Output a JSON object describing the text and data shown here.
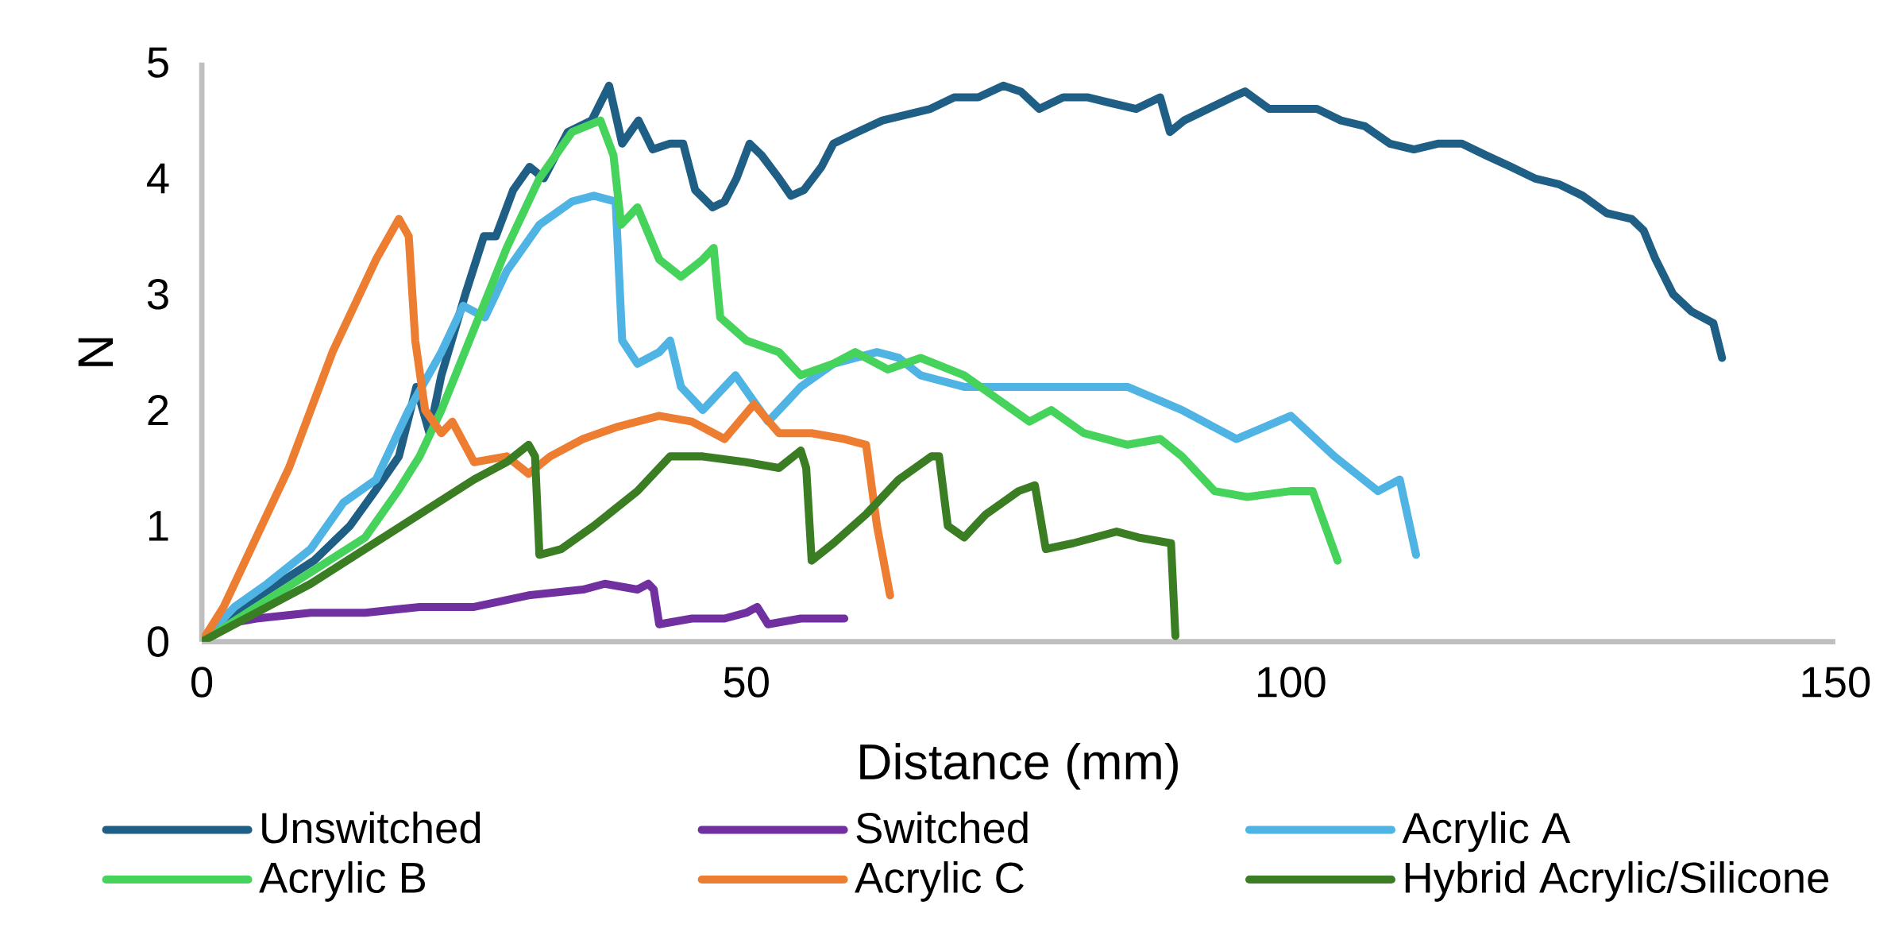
{
  "chart_data": {
    "type": "line",
    "xlabel": "Distance (mm)",
    "ylabel": "N",
    "xlim": [
      0,
      150
    ],
    "xticks": [
      0,
      50,
      100,
      150
    ],
    "ylim": [
      0,
      5
    ],
    "yticks": [
      0,
      1,
      2,
      3,
      4,
      5
    ],
    "grid": false,
    "legend": "bottom",
    "line_style": "solid",
    "marker": "none",
    "series": [
      {
        "name": "Unswitched",
        "color": "#1f5f86",
        "x": [
          0,
          3.7,
          7.0,
          10.3,
          13.6,
          15.9,
          18.1,
          19.7,
          20.9,
          22.0,
          24.2,
          25.9,
          27.0,
          28.6,
          30.1,
          31.4,
          33.6,
          35.8,
          37.4,
          38.6,
          40.1,
          41.4,
          43.0,
          44.2,
          45.3,
          46.9,
          48.0,
          49.1,
          50.3,
          51.4,
          53.0,
          54.1,
          55.3,
          56.9,
          58.0,
          60.2,
          62.5,
          64.7,
          66.9,
          69.1,
          71.3,
          73.6,
          75.2,
          76.9,
          79.1,
          81.3,
          83.5,
          85.8,
          88.0,
          88.9,
          90.2,
          92.4,
          94.6,
          95.8,
          98.0,
          100.2,
          102.4,
          104.6,
          106.8,
          109.1,
          111.3,
          113.5,
          115.7,
          117.9,
          120.2,
          122.4,
          124.6,
          126.8,
          129.0,
          131.3,
          132.4,
          133.5,
          135.1,
          136.8,
          138.8,
          139.6
        ],
        "values": [
          0,
          0.3,
          0.5,
          0.7,
          1.0,
          1.3,
          1.6,
          2.2,
          1.8,
          2.3,
          3.0,
          3.5,
          3.5,
          3.9,
          4.1,
          4.0,
          4.4,
          4.5,
          4.8,
          4.3,
          4.5,
          4.25,
          4.3,
          4.3,
          3.9,
          3.75,
          3.8,
          4.0,
          4.3,
          4.2,
          4.0,
          3.85,
          3.9,
          4.1,
          4.3,
          4.4,
          4.5,
          4.55,
          4.6,
          4.7,
          4.7,
          4.8,
          4.75,
          4.6,
          4.7,
          4.7,
          4.65,
          4.6,
          4.7,
          4.4,
          4.5,
          4.6,
          4.7,
          4.75,
          4.6,
          4.6,
          4.6,
          4.5,
          4.45,
          4.3,
          4.25,
          4.3,
          4.3,
          4.2,
          4.1,
          4.0,
          3.95,
          3.85,
          3.7,
          3.65,
          3.55,
          3.3,
          3.0,
          2.85,
          2.75,
          2.45
        ]
      },
      {
        "name": "Switched",
        "color": "#7030a0",
        "x": [
          0,
          2,
          5,
          10,
          15,
          20,
          25,
          30,
          35,
          37,
          40,
          41,
          41.5,
          42,
          45,
          48,
          50,
          51,
          52,
          55,
          59
        ],
        "values": [
          0,
          0.15,
          0.2,
          0.25,
          0.25,
          0.3,
          0.3,
          0.4,
          0.45,
          0.5,
          0.45,
          0.5,
          0.45,
          0.15,
          0.2,
          0.2,
          0.25,
          0.3,
          0.15,
          0.2,
          0.2
        ]
      },
      {
        "name": "Acrylic A",
        "color": "#4fb3e3",
        "x": [
          0,
          3,
          6,
          10,
          13,
          16,
          19,
          22,
          24,
          26,
          28,
          31,
          34,
          36,
          38,
          38.6,
          40,
          42,
          43,
          44,
          46,
          49,
          52,
          55,
          58,
          62,
          64,
          66,
          70,
          75,
          80,
          85,
          90,
          95,
          100,
          104,
          108,
          110,
          111.5
        ],
        "values": [
          0,
          0.3,
          0.5,
          0.8,
          1.2,
          1.4,
          2.0,
          2.5,
          2.9,
          2.8,
          3.2,
          3.6,
          3.8,
          3.85,
          3.8,
          2.6,
          2.4,
          2.5,
          2.6,
          2.2,
          2.0,
          2.3,
          1.9,
          2.2,
          2.4,
          2.5,
          2.45,
          2.3,
          2.2,
          2.2,
          2.2,
          2.2,
          2.0,
          1.75,
          1.95,
          1.6,
          1.3,
          1.4,
          0.75
        ]
      },
      {
        "name": "Acrylic B",
        "color": "#46d35b",
        "x": [
          0,
          5,
          10,
          15,
          18,
          20,
          22,
          25,
          28,
          31,
          34,
          36.6,
          37.8,
          38.5,
          40,
          42,
          44,
          46,
          47,
          47.6,
          50,
          53,
          55,
          58,
          60,
          63,
          66,
          70,
          73,
          76,
          78,
          81,
          85,
          88,
          90,
          93,
          96,
          100,
          102,
          104.3
        ],
        "values": [
          0,
          0.3,
          0.6,
          0.9,
          1.3,
          1.6,
          2.0,
          2.7,
          3.4,
          4.0,
          4.4,
          4.5,
          4.2,
          3.6,
          3.75,
          3.3,
          3.15,
          3.3,
          3.4,
          2.8,
          2.6,
          2.5,
          2.3,
          2.4,
          2.5,
          2.35,
          2.45,
          2.3,
          2.1,
          1.9,
          2.0,
          1.8,
          1.7,
          1.75,
          1.6,
          1.3,
          1.25,
          1.3,
          1.3,
          0.7
        ]
      },
      {
        "name": "Acrylic C",
        "color": "#ed7d31",
        "x": [
          0,
          2,
          4,
          6,
          8,
          10,
          12,
          14,
          16,
          18.1,
          19,
          19.6,
          20.5,
          22,
          23,
          25,
          28,
          30,
          32,
          35,
          38,
          42,
          45,
          48,
          50.7,
          53,
          56,
          59,
          61,
          62,
          63.2
        ],
        "values": [
          0,
          0.3,
          0.7,
          1.1,
          1.5,
          2.0,
          2.5,
          2.9,
          3.3,
          3.65,
          3.5,
          2.6,
          2.0,
          1.8,
          1.9,
          1.55,
          1.6,
          1.45,
          1.6,
          1.75,
          1.85,
          1.95,
          1.9,
          1.75,
          2.05,
          1.8,
          1.8,
          1.75,
          1.7,
          1.0,
          0.4
        ]
      },
      {
        "name": "Hybrid Acrylic/Silicone",
        "color": "#3b7d23",
        "x": [
          0,
          5,
          10,
          15,
          20,
          25,
          28,
          30,
          30.6,
          31,
          33,
          36,
          40,
          43,
          46,
          50,
          53,
          55,
          55.5,
          56,
          58,
          61,
          64,
          67,
          67.7,
          68.5,
          70,
          72,
          75,
          76.5,
          77.5,
          80,
          84,
          86,
          89,
          89.4
        ],
        "values": [
          0,
          0.25,
          0.5,
          0.8,
          1.1,
          1.4,
          1.55,
          1.7,
          1.6,
          0.75,
          0.8,
          1.0,
          1.3,
          1.6,
          1.6,
          1.55,
          1.5,
          1.65,
          1.5,
          0.7,
          0.85,
          1.1,
          1.4,
          1.6,
          1.6,
          1.0,
          0.9,
          1.1,
          1.3,
          1.35,
          0.8,
          0.85,
          0.95,
          0.9,
          0.85,
          0.05
        ]
      }
    ]
  }
}
